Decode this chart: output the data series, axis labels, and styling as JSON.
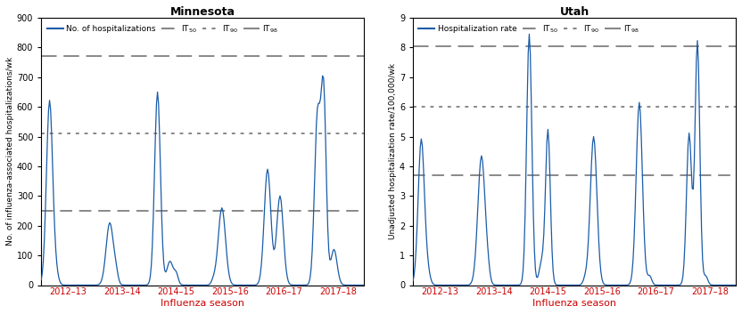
{
  "mn_title": "Minnesota",
  "ut_title": "Utah",
  "mn_ylabel": "No. of influenza-associated hospitalizations/wk",
  "ut_ylabel": "Unadjusted hospitalization rate/100,000/wk",
  "xlabel": "Influenza season",
  "mn_ylim": [
    0,
    900
  ],
  "ut_ylim": [
    0,
    9
  ],
  "mn_yticks": [
    0,
    100,
    200,
    300,
    400,
    500,
    600,
    700,
    800,
    900
  ],
  "ut_yticks": [
    0,
    1,
    2,
    3,
    4,
    5,
    6,
    7,
    8,
    9
  ],
  "mn_it50": 250,
  "mn_it90": 510,
  "mn_it98": 770,
  "ut_it50": 3.7,
  "ut_it90": 6.0,
  "ut_it98": 8.05,
  "season_labels": [
    "2012–13",
    "2013–14",
    "2014–15",
    "2015–16",
    "2016–17",
    "2017–18"
  ],
  "line_color": "#1a5ca8",
  "it_color": "#888888",
  "background_color": "#ffffff",
  "legend_data_label_mn": "No. of hospitalizations",
  "legend_data_label_ut": "Hospitalization rate",
  "legend_it50": "IT",
  "legend_it90": "IT",
  "legend_it98": "IT",
  "sub50": "50",
  "sub90": "90",
  "sub98": "98"
}
